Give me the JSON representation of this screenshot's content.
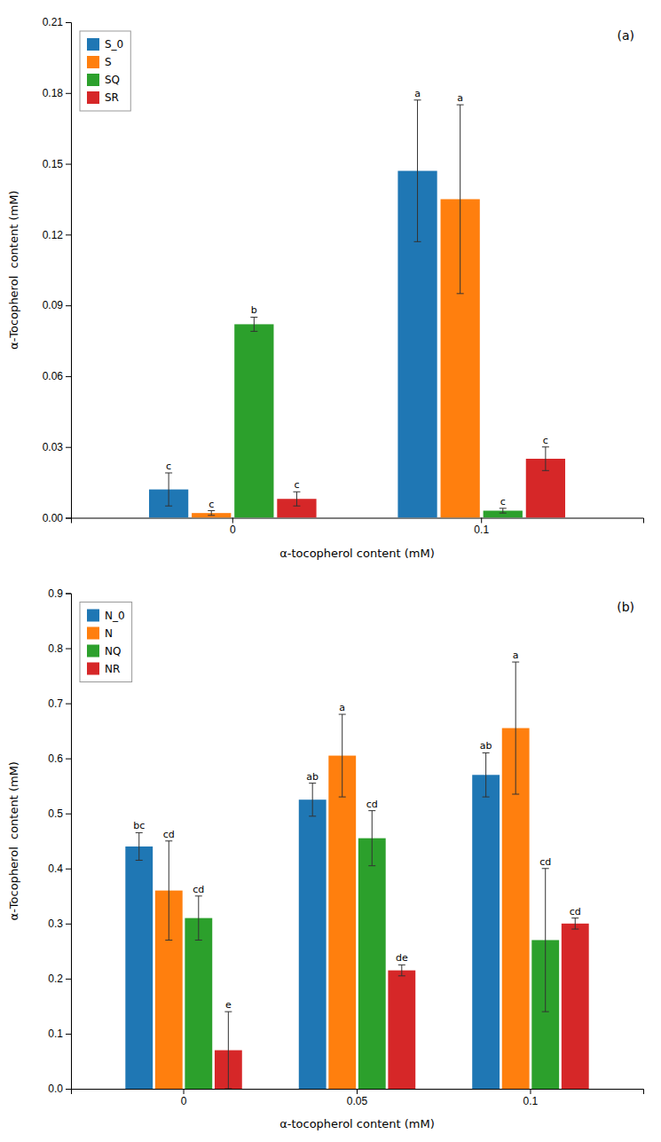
{
  "chart_data": [
    {
      "type": "bar",
      "title": "(a)",
      "xlabel": "α-tocopherol content (mM)",
      "ylabel": "α-Tocopherol  content (mM)",
      "categories": [
        "0",
        "0.1"
      ],
      "series": [
        {
          "name": "S_0",
          "values": [
            0.012,
            0.147
          ],
          "errors": [
            0.007,
            0.03
          ],
          "letters": [
            "c",
            "a"
          ]
        },
        {
          "name": "S",
          "values": [
            0.002,
            0.135
          ],
          "errors": [
            0.001,
            0.04
          ],
          "letters": [
            "c",
            "a"
          ]
        },
        {
          "name": "SQ",
          "values": [
            0.082,
            0.003
          ],
          "errors": [
            0.003,
            0.001
          ],
          "letters": [
            "b",
            "c"
          ]
        },
        {
          "name": "SR",
          "values": [
            0.008,
            0.025
          ],
          "errors": [
            0.003,
            0.005
          ],
          "letters": [
            "c",
            "c"
          ]
        }
      ],
      "ylim": [
        0,
        0.21
      ],
      "yticks": [
        {
          "value": 0,
          "label": "0.00"
        },
        0.03,
        0.06,
        0.09,
        0.12,
        0.15,
        0.18,
        0.21
      ],
      "legend": "upper left",
      "grid": false
    },
    {
      "type": "bar",
      "title": "(b)",
      "xlabel": "α-tocopherol content (mM)",
      "ylabel": "α-Tocopherol  content (mM)",
      "categories": [
        "0",
        "0.05",
        "0.1"
      ],
      "series": [
        {
          "name": "N_0",
          "values": [
            0.44,
            0.525,
            0.57
          ],
          "errors": [
            0.025,
            0.03,
            0.04
          ],
          "letters": [
            "bc",
            "ab",
            "ab"
          ]
        },
        {
          "name": "N",
          "values": [
            0.36,
            0.605,
            0.655
          ],
          "errors": [
            0.09,
            0.075,
            0.12
          ],
          "letters": [
            "cd",
            "a",
            "a"
          ]
        },
        {
          "name": "NQ",
          "values": [
            0.31,
            0.455,
            0.27
          ],
          "errors": [
            0.04,
            0.05,
            0.13
          ],
          "letters": [
            "cd",
            "cd",
            "cd"
          ]
        },
        {
          "name": "NR",
          "values": [
            0.07,
            0.215,
            0.3
          ],
          "errors": [
            0.07,
            0.01,
            0.01
          ],
          "letters": [
            "e",
            "de",
            "cd"
          ]
        }
      ],
      "ylim": [
        0,
        0.9
      ],
      "yticks": [
        {
          "value": 0,
          "label": "0.0"
        },
        0.1,
        0.2,
        0.3,
        0.4,
        0.5,
        0.6,
        0.7,
        0.8,
        0.9
      ],
      "legend": "upper left",
      "grid": false
    }
  ]
}
